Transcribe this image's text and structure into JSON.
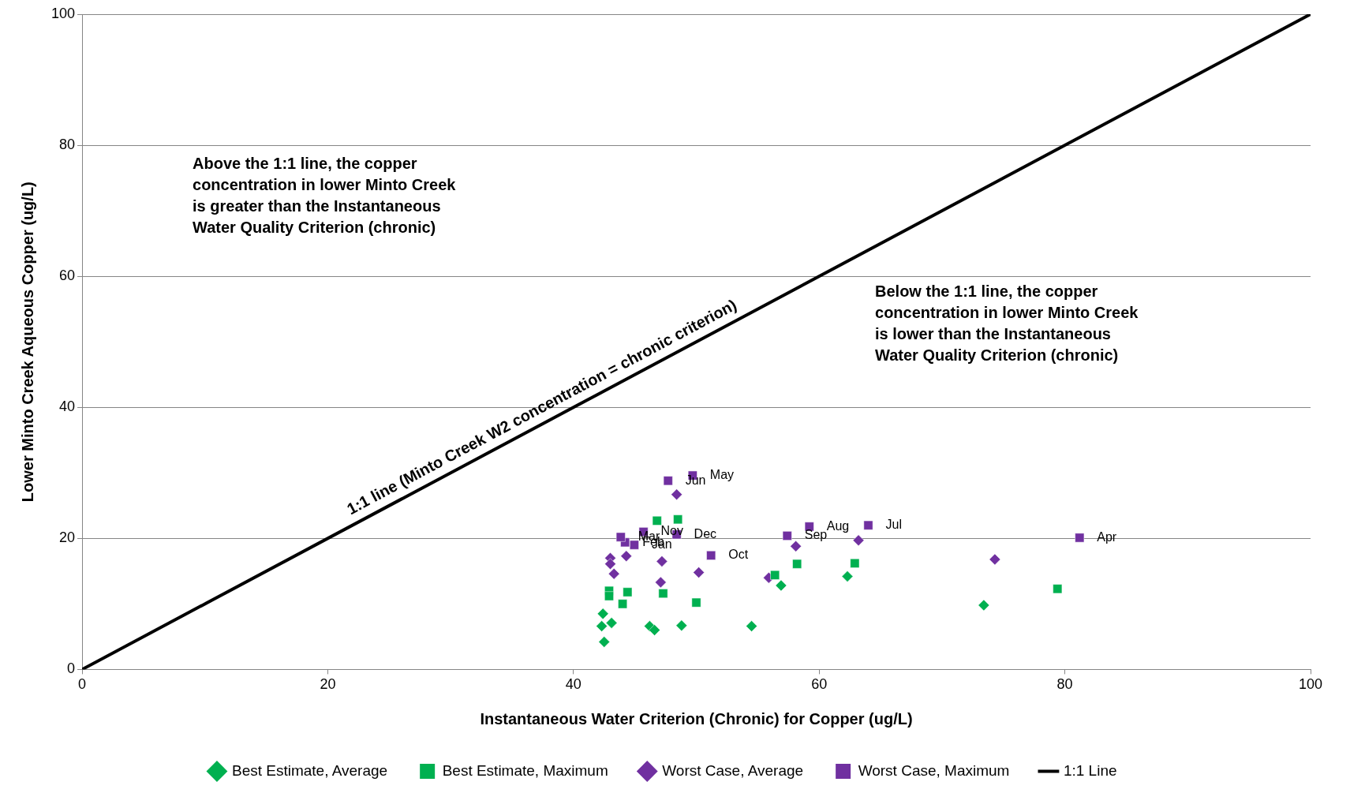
{
  "chart_data": {
    "type": "scatter",
    "xlabel": "Instantaneous Water Criterion (Chronic) for Copper (ug/L)",
    "ylabel": "Lower Minto Creek Aqueous Copper (ug/L)",
    "xlim": [
      0,
      100
    ],
    "ylim": [
      0,
      100
    ],
    "xticks": [
      0,
      20,
      40,
      60,
      80,
      100
    ],
    "yticks": [
      0,
      20,
      40,
      60,
      80,
      100
    ],
    "grid": "y",
    "legend": "bottom",
    "series": [
      {
        "name": "Best Estimate, Average",
        "color": "#00b050",
        "marker": "diamond",
        "x": [
          42.4,
          42.3,
          43.1,
          42.5,
          46.2,
          46.6,
          48.8,
          54.5,
          56.9,
          62.3,
          73.4
        ],
        "values": [
          8.5,
          6.6,
          7.1,
          4.2,
          6.6,
          6.0,
          6.7,
          6.6,
          12.8,
          14.2,
          9.8
        ]
      },
      {
        "name": "Best Estimate, Maximum",
        "color": "#00b050",
        "marker": "square",
        "x": [
          46.8,
          48.5,
          42.9,
          42.9,
          44.4,
          44.0,
          47.3,
          50.0,
          56.4,
          58.2,
          62.9,
          79.4
        ],
        "values": [
          22.7,
          22.9,
          12.0,
          11.2,
          11.8,
          10.0,
          11.6,
          10.2,
          14.4,
          16.1,
          16.2,
          12.3
        ]
      },
      {
        "name": "Worst Case, Average",
        "color": "#7030a0",
        "marker": "diamond",
        "x": [
          48.4,
          43.0,
          43.0,
          43.3,
          44.3,
          47.2,
          47.1,
          50.2,
          55.9,
          58.1,
          63.2,
          74.3
        ],
        "values": [
          26.7,
          17.0,
          16.1,
          14.6,
          17.3,
          16.5,
          13.3,
          14.8,
          14.0,
          18.8,
          19.7,
          16.8
        ]
      },
      {
        "name": "Worst Case, Maximum",
        "color": "#7030a0",
        "marker": "square",
        "x": [
          44.95,
          44.2,
          43.85,
          81.2,
          49.7,
          47.7,
          64.0,
          59.2,
          57.4,
          51.2,
          45.7,
          48.4
        ],
        "values": [
          19.0,
          19.4,
          20.2,
          20.1,
          29.6,
          28.8,
          22.0,
          21.8,
          20.4,
          17.4,
          21.0,
          20.6
        ],
        "value_labels": [
          "Jan",
          "Feb",
          "Mar",
          "Apr",
          "May",
          "Jun",
          "Jul",
          "Aug",
          "Sep",
          "Oct",
          "Nov",
          "Dec"
        ]
      },
      {
        "name": "1:1 Line",
        "type": "line",
        "color": "#000000",
        "marker": "none",
        "x": [
          0,
          100
        ],
        "values": [
          0,
          100
        ]
      }
    ],
    "annotations": [
      "Above the 1:1 line, the copper concentration in lower Minto Creek is greater than the Instantaneous Water Quality Criterion (chronic)",
      "Below the 1:1 line, the copper concentration in lower Minto Creek is lower than the Instantaneous Water Quality Criterion (chronic)",
      {
        "text": "1:1 line (Minto Creek W2 concentration = chronic criterion)",
        "x": 38,
        "y": 38
      }
    ]
  }
}
